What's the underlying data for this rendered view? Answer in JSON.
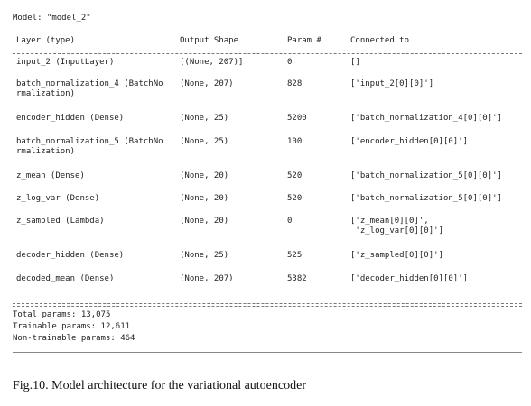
{
  "model_line": "Model: \"model_2\"",
  "headers": {
    "layer": "Layer (type)",
    "output": "Output Shape",
    "params": "Param #",
    "connected": "Connected to"
  },
  "rows": [
    {
      "layer": [
        "input_2 (InputLayer)"
      ],
      "output": "[(None, 207)]",
      "params": "0",
      "connected": [
        "[]"
      ]
    },
    {
      "layer": [
        "batch_normalization_4 (BatchNo",
        "rmalization)"
      ],
      "output": "(None, 207)",
      "params": "828",
      "connected": [
        "['input_2[0][0]']"
      ]
    },
    {
      "layer": [
        "encoder_hidden (Dense)"
      ],
      "output": "(None, 25)",
      "params": "5200",
      "connected": [
        "['batch_normalization_4[0][0]']"
      ]
    },
    {
      "layer": [
        "batch_normalization_5 (BatchNo",
        "rmalization)"
      ],
      "output": "(None, 25)",
      "params": "100",
      "connected": [
        "['encoder_hidden[0][0]']"
      ]
    },
    {
      "layer": [
        "z_mean (Dense)"
      ],
      "output": "(None, 20)",
      "params": "520",
      "connected": [
        "['batch_normalization_5[0][0]']"
      ]
    },
    {
      "layer": [
        "z_log_var (Dense)"
      ],
      "output": "(None, 20)",
      "params": "520",
      "connected": [
        "['batch_normalization_5[0][0]']"
      ]
    },
    {
      "layer": [
        "z_sampled (Lambda)"
      ],
      "output": "(None, 20)",
      "params": "0",
      "connected": [
        "['z_mean[0][0]',",
        " 'z_log_var[0][0]']"
      ]
    },
    {
      "layer": [
        "decoder_hidden (Dense)"
      ],
      "output": "(None, 25)",
      "params": "525",
      "connected": [
        "['z_sampled[0][0]']"
      ]
    },
    {
      "layer": [
        "decoded_mean (Dense)"
      ],
      "output": "(None, 207)",
      "params": "5382",
      "connected": [
        "['decoder_hidden[0][0]']"
      ]
    }
  ],
  "summary": {
    "total": "Total params: 13,075",
    "trainable": "Trainable params: 12,611",
    "non_trainable": "Non-trainable params: 464"
  },
  "caption": "Fig.10. Model architecture for the variational autoencoder"
}
